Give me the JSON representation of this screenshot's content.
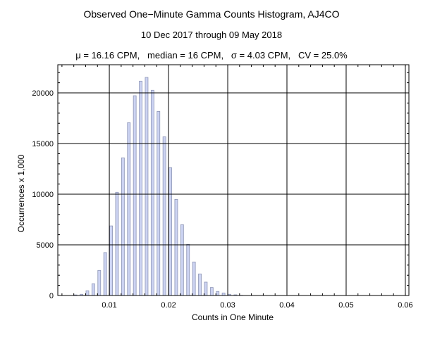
{
  "chart_data": {
    "type": "bar",
    "title": "Observed One−Minute Gamma Counts Histogram, AJ4CO",
    "subtitle": "10 Dec 2017 through 09 May 2018",
    "stats_line": "μ = 16.16 CPM,   median = 16 CPM,   σ = 4.03 CPM,   CV = 25.0%",
    "xlabel": "Counts in One Minute",
    "ylabel": "Occurrences x 1,000",
    "xlim": [
      0.0013,
      0.0606
    ],
    "ylim": [
      0,
      22780
    ],
    "xticks": [
      "0.01",
      "0.02",
      "0.03",
      "0.04",
      "0.05",
      "0.06"
    ],
    "yticks": [
      "0",
      "5000",
      "10000",
      "15000",
      "20000"
    ],
    "grid": true,
    "bar_color": "#ccd3f2",
    "bar_edge": "#8d95b5",
    "x": [
      0.004,
      0.005,
      0.006,
      0.007,
      0.008,
      0.009,
      0.01,
      0.011,
      0.012,
      0.013,
      0.014,
      0.015,
      0.016,
      0.017,
      0.018,
      0.019,
      0.02,
      0.021,
      0.022,
      0.023,
      0.024,
      0.025,
      0.026,
      0.027,
      0.028,
      0.029,
      0.03,
      0.031,
      0.032
    ],
    "values": [
      60,
      120,
      470,
      1160,
      2480,
      4240,
      6870,
      10190,
      13590,
      17060,
      19720,
      21160,
      21530,
      20260,
      18170,
      15670,
      12620,
      9490,
      6990,
      5050,
      3310,
      2130,
      1320,
      790,
      400,
      250,
      120,
      70,
      20
    ]
  }
}
